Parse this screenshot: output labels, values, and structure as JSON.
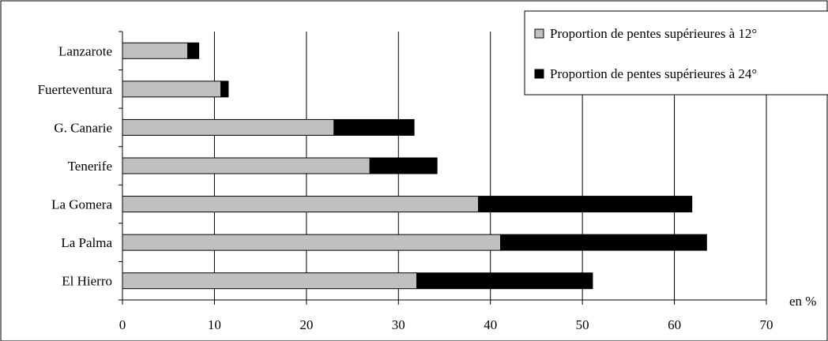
{
  "chart_data": {
    "type": "bar",
    "orientation": "horizontal",
    "stacked": true,
    "categories": [
      "Lanzarote",
      "Fuerteventura",
      "G. Canarie",
      "Tenerife",
      "La Gomera",
      "La Palma",
      "El Hierro"
    ],
    "series": [
      {
        "name": "Proportion de pentes supérieures à 12°",
        "values": [
          7.1,
          10.7,
          23.0,
          26.9,
          38.7,
          41.1,
          32.0
        ],
        "color": "#c0c0c0"
      },
      {
        "name": "Proportion de pentes supérieures à 24°",
        "values": [
          1.2,
          0.8,
          8.7,
          7.3,
          23.2,
          22.4,
          19.1
        ],
        "color": "#000000"
      }
    ],
    "xlim": [
      0,
      70
    ],
    "xticks": [
      0,
      10,
      20,
      30,
      40,
      50,
      60,
      70
    ],
    "x_unit_label": "en %",
    "grid": true,
    "legend_position": "top-right"
  }
}
